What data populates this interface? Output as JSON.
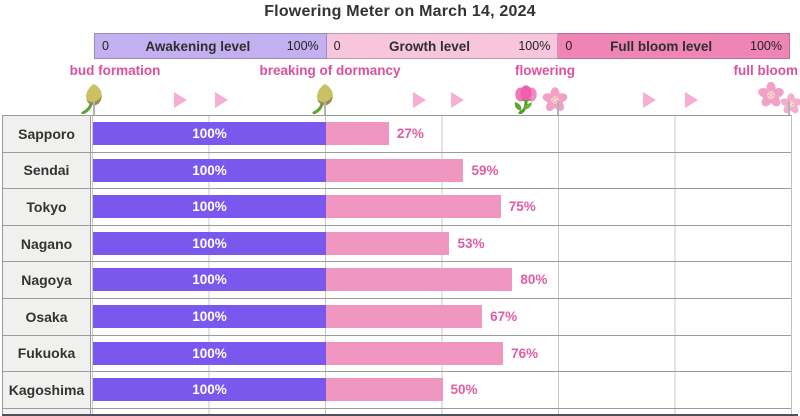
{
  "title": "Flowering Meter  on  March 14, 2024",
  "legend": {
    "sections": [
      {
        "min": "0",
        "label": "Awakening level",
        "max": "100%",
        "bg": "#c2b0f0"
      },
      {
        "min": "0",
        "label": "Growth level",
        "max": "100%",
        "bg": "#f8c6dc"
      },
      {
        "min": "0",
        "label": "Full bloom level",
        "max": "100%",
        "bg": "#ee85b4"
      }
    ]
  },
  "stages": [
    {
      "label": "bud formation",
      "icon": "bud-icon"
    },
    {
      "label": "breaking of dormancy",
      "icon": "bud-icon"
    },
    {
      "label": "flowering",
      "icons": [
        "tulip-icon",
        "blossom-icon"
      ]
    },
    {
      "label": "full bloom",
      "icon": "blossom-cluster-icon"
    }
  ],
  "progress_marker_icon": "arrow-icon",
  "colors": {
    "awakening_bar": "#7a58ee",
    "growth_bar": "#ef97c1",
    "growth_value_text": "#e25ca3",
    "stage_label_text": "#de4f9e",
    "legend_awakening_bg": "#c2b0f0",
    "legend_growth_bg": "#f8c6dc",
    "legend_full_bloom_bg": "#ee85b4",
    "arrow_pink": "#f6afd3"
  },
  "chart_data": {
    "type": "bar",
    "orientation": "horizontal",
    "title": "Flowering Meter  on  March 14, 2024",
    "categories": [
      "Sapporo",
      "Sendai",
      "Tokyo",
      "Nagano",
      "Nagoya",
      "Osaka",
      "Fukuoka",
      "Kagoshima"
    ],
    "series": [
      {
        "name": "Awakening level",
        "values": [
          100,
          100,
          100,
          100,
          100,
          100,
          100,
          100
        ],
        "unit": "%"
      },
      {
        "name": "Growth level",
        "values": [
          27,
          59,
          75,
          53,
          80,
          67,
          76,
          50
        ],
        "unit": "%"
      },
      {
        "name": "Full bloom level",
        "values": [
          0,
          0,
          0,
          0,
          0,
          0,
          0,
          0
        ],
        "unit": "%"
      }
    ],
    "section_range": [
      0,
      100
    ],
    "grid": true,
    "legend_position": "top",
    "stage_axis": [
      "bud formation",
      "breaking of dormancy",
      "flowering",
      "full bloom"
    ]
  },
  "bar_labels": {
    "awakening": [
      "100%",
      "100%",
      "100%",
      "100%",
      "100%",
      "100%",
      "100%",
      "100%"
    ],
    "growth": [
      "27%",
      "59%",
      "75%",
      "53%",
      "80%",
      "67%",
      "76%",
      "50%"
    ]
  }
}
